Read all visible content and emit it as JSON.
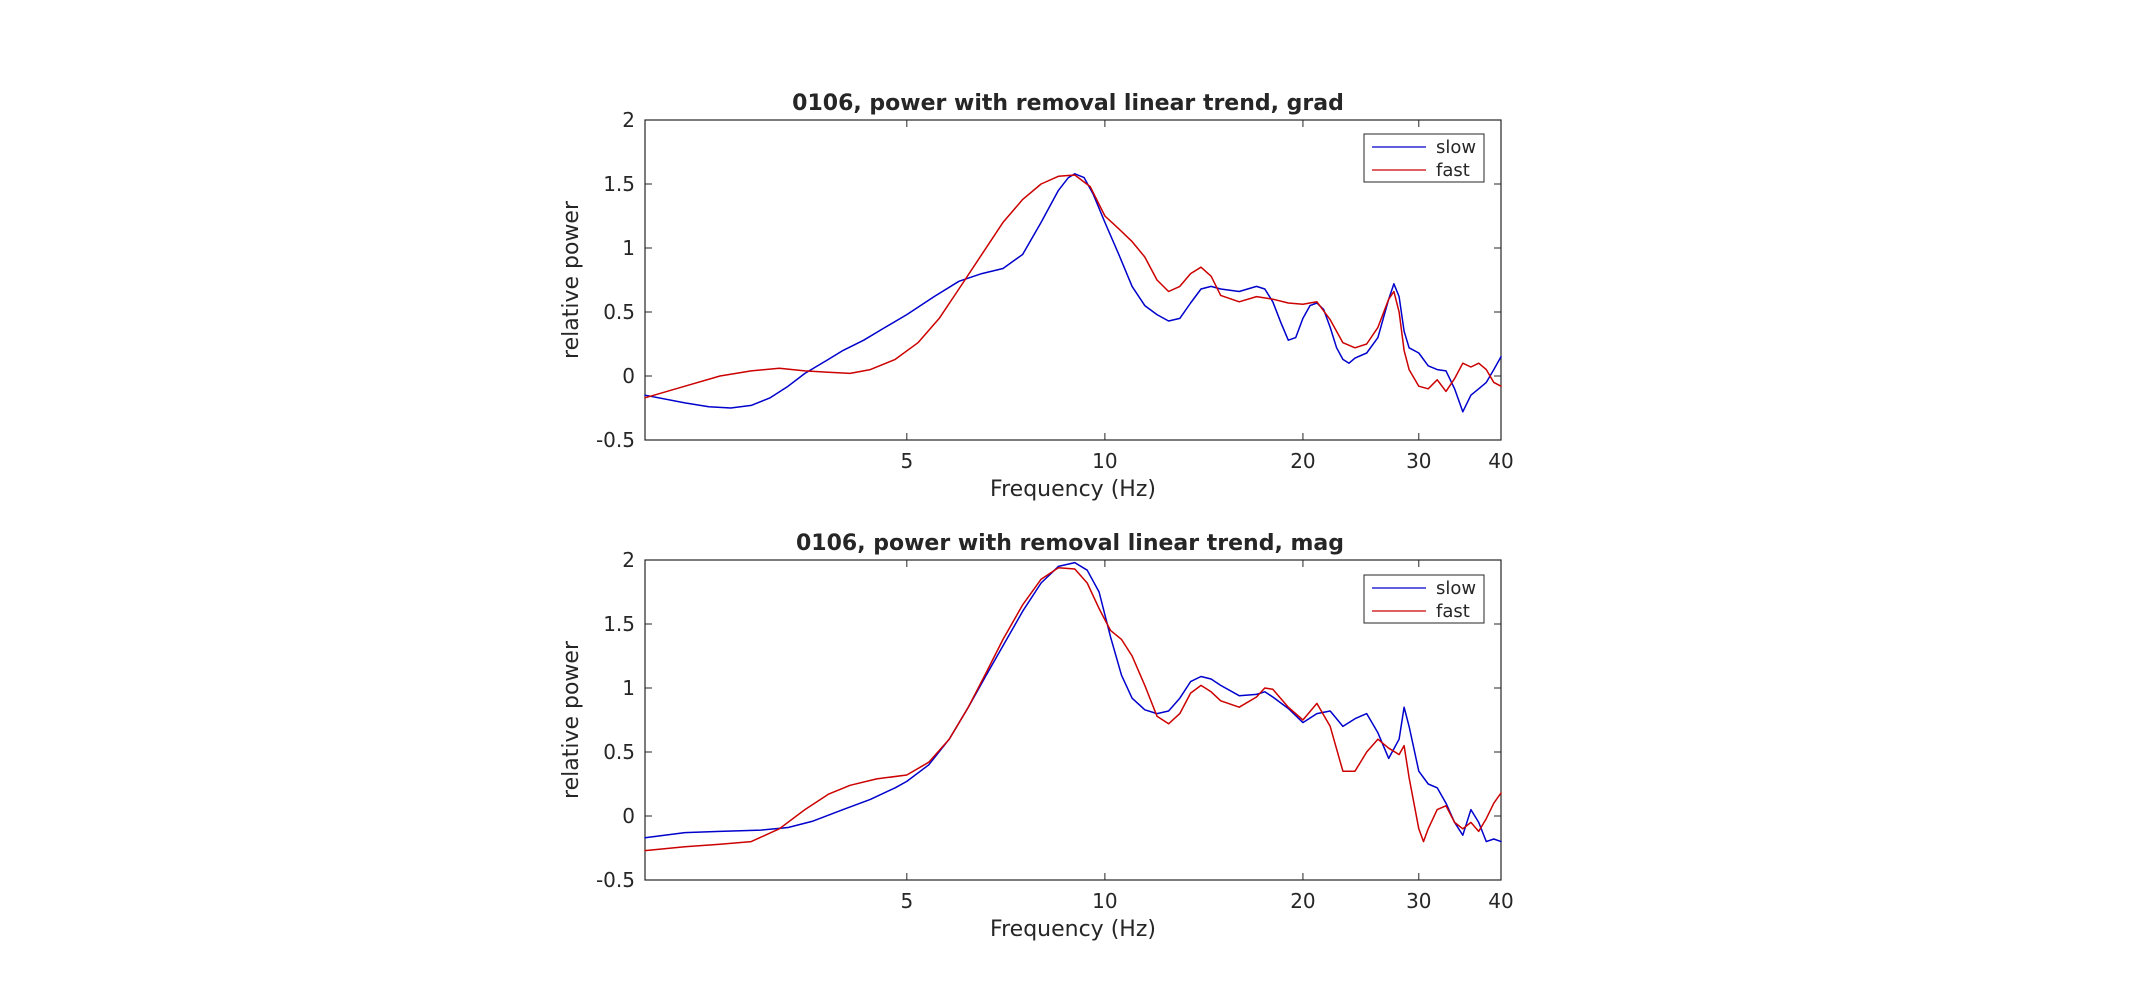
{
  "chart_data": [
    {
      "type": "line",
      "title": "0106, power with removal linear trend, grad",
      "xlabel": "Frequency (Hz)",
      "ylabel": "relative power",
      "x_scale": "log",
      "xlim": [
        2,
        40
      ],
      "ylim": [
        -0.5,
        2
      ],
      "x_ticks": [
        5,
        10,
        20,
        30,
        40
      ],
      "y_ticks": [
        -0.5,
        0,
        0.5,
        1,
        1.5,
        2
      ],
      "grid": false,
      "legend_position": "top-right",
      "series": [
        {
          "name": "slow",
          "color": "#0000cc",
          "points": [
            [
              2,
              -0.15
            ],
            [
              2.3,
              -0.21
            ],
            [
              2.5,
              -0.24
            ],
            [
              2.7,
              -0.25
            ],
            [
              2.9,
              -0.23
            ],
            [
              3.1,
              -0.17
            ],
            [
              3.3,
              -0.08
            ],
            [
              3.5,
              0.02
            ],
            [
              3.8,
              0.13
            ],
            [
              4.0,
              0.2
            ],
            [
              4.3,
              0.28
            ],
            [
              4.6,
              0.37
            ],
            [
              5.0,
              0.48
            ],
            [
              5.5,
              0.62
            ],
            [
              6.0,
              0.74
            ],
            [
              6.5,
              0.8
            ],
            [
              7.0,
              0.84
            ],
            [
              7.5,
              0.95
            ],
            [
              8.0,
              1.2
            ],
            [
              8.5,
              1.45
            ],
            [
              8.8,
              1.55
            ],
            [
              9.0,
              1.58
            ],
            [
              9.3,
              1.55
            ],
            [
              9.6,
              1.42
            ],
            [
              10.0,
              1.2
            ],
            [
              10.5,
              0.95
            ],
            [
              11.0,
              0.7
            ],
            [
              11.5,
              0.55
            ],
            [
              12.0,
              0.48
            ],
            [
              12.5,
              0.43
            ],
            [
              13.0,
              0.45
            ],
            [
              13.5,
              0.57
            ],
            [
              14.0,
              0.68
            ],
            [
              14.5,
              0.7
            ],
            [
              15.0,
              0.68
            ],
            [
              16.0,
              0.66
            ],
            [
              17.0,
              0.7
            ],
            [
              17.5,
              0.68
            ],
            [
              18.0,
              0.58
            ],
            [
              18.5,
              0.42
            ],
            [
              19.0,
              0.28
            ],
            [
              19.5,
              0.3
            ],
            [
              20.0,
              0.45
            ],
            [
              20.5,
              0.55
            ],
            [
              21.0,
              0.57
            ],
            [
              21.5,
              0.52
            ],
            [
              22.0,
              0.38
            ],
            [
              22.5,
              0.22
            ],
            [
              23.0,
              0.13
            ],
            [
              23.5,
              0.1
            ],
            [
              24.0,
              0.14
            ],
            [
              25.0,
              0.18
            ],
            [
              26.0,
              0.3
            ],
            [
              27.0,
              0.6
            ],
            [
              27.5,
              0.72
            ],
            [
              28.0,
              0.62
            ],
            [
              28.5,
              0.35
            ],
            [
              29.0,
              0.22
            ],
            [
              30.0,
              0.18
            ],
            [
              31.0,
              0.08
            ],
            [
              32.0,
              0.05
            ],
            [
              33.0,
              0.04
            ],
            [
              34.0,
              -0.1
            ],
            [
              35.0,
              -0.28
            ],
            [
              36.0,
              -0.15
            ],
            [
              37.0,
              -0.1
            ],
            [
              38.0,
              -0.05
            ],
            [
              39.0,
              0.05
            ],
            [
              40.0,
              0.15
            ]
          ]
        },
        {
          "name": "fast",
          "color": "#cc0000",
          "points": [
            [
              2,
              -0.17
            ],
            [
              2.3,
              -0.08
            ],
            [
              2.6,
              0.0
            ],
            [
              2.9,
              0.04
            ],
            [
              3.2,
              0.06
            ],
            [
              3.5,
              0.04
            ],
            [
              3.8,
              0.03
            ],
            [
              4.1,
              0.02
            ],
            [
              4.4,
              0.05
            ],
            [
              4.8,
              0.13
            ],
            [
              5.2,
              0.26
            ],
            [
              5.6,
              0.45
            ],
            [
              6.0,
              0.68
            ],
            [
              6.5,
              0.95
            ],
            [
              7.0,
              1.2
            ],
            [
              7.5,
              1.38
            ],
            [
              8.0,
              1.5
            ],
            [
              8.5,
              1.56
            ],
            [
              9.0,
              1.57
            ],
            [
              9.5,
              1.48
            ],
            [
              10.0,
              1.25
            ],
            [
              10.5,
              1.15
            ],
            [
              11.0,
              1.05
            ],
            [
              11.5,
              0.93
            ],
            [
              12.0,
              0.75
            ],
            [
              12.5,
              0.66
            ],
            [
              13.0,
              0.7
            ],
            [
              13.5,
              0.8
            ],
            [
              14.0,
              0.85
            ],
            [
              14.5,
              0.78
            ],
            [
              15.0,
              0.63
            ],
            [
              16.0,
              0.58
            ],
            [
              17.0,
              0.62
            ],
            [
              18.0,
              0.6
            ],
            [
              19.0,
              0.57
            ],
            [
              20.0,
              0.56
            ],
            [
              21.0,
              0.58
            ],
            [
              22.0,
              0.44
            ],
            [
              23.0,
              0.26
            ],
            [
              24.0,
              0.22
            ],
            [
              25.0,
              0.25
            ],
            [
              26.0,
              0.38
            ],
            [
              27.0,
              0.6
            ],
            [
              27.5,
              0.66
            ],
            [
              28.0,
              0.5
            ],
            [
              28.5,
              0.2
            ],
            [
              29.0,
              0.05
            ],
            [
              30.0,
              -0.08
            ],
            [
              31.0,
              -0.1
            ],
            [
              32.0,
              -0.03
            ],
            [
              33.0,
              -0.12
            ],
            [
              34.0,
              -0.02
            ],
            [
              35.0,
              0.1
            ],
            [
              36.0,
              0.07
            ],
            [
              37.0,
              0.1
            ],
            [
              38.0,
              0.05
            ],
            [
              39.0,
              -0.05
            ],
            [
              40.0,
              -0.08
            ]
          ]
        }
      ]
    },
    {
      "type": "line",
      "title": "0106, power with removal linear trend, mag",
      "xlabel": "Frequency (Hz)",
      "ylabel": "relative power",
      "x_scale": "log",
      "xlim": [
        2,
        40
      ],
      "ylim": [
        -0.5,
        2
      ],
      "x_ticks": [
        5,
        10,
        20,
        30,
        40
      ],
      "y_ticks": [
        -0.5,
        0,
        0.5,
        1,
        1.5,
        2
      ],
      "grid": false,
      "legend_position": "top-right",
      "series": [
        {
          "name": "slow",
          "color": "#0000cc",
          "points": [
            [
              2,
              -0.17
            ],
            [
              2.3,
              -0.13
            ],
            [
              2.6,
              -0.12
            ],
            [
              3.0,
              -0.11
            ],
            [
              3.3,
              -0.09
            ],
            [
              3.6,
              -0.04
            ],
            [
              4.0,
              0.05
            ],
            [
              4.4,
              0.13
            ],
            [
              4.8,
              0.22
            ],
            [
              5.0,
              0.27
            ],
            [
              5.4,
              0.4
            ],
            [
              5.8,
              0.6
            ],
            [
              6.2,
              0.85
            ],
            [
              6.6,
              1.1
            ],
            [
              7.0,
              1.33
            ],
            [
              7.5,
              1.6
            ],
            [
              8.0,
              1.82
            ],
            [
              8.5,
              1.95
            ],
            [
              9.0,
              1.98
            ],
            [
              9.4,
              1.92
            ],
            [
              9.8,
              1.75
            ],
            [
              10.2,
              1.4
            ],
            [
              10.6,
              1.1
            ],
            [
              11.0,
              0.92
            ],
            [
              11.5,
              0.83
            ],
            [
              12.0,
              0.8
            ],
            [
              12.5,
              0.82
            ],
            [
              13.0,
              0.92
            ],
            [
              13.5,
              1.05
            ],
            [
              14.0,
              1.09
            ],
            [
              14.5,
              1.07
            ],
            [
              15.0,
              1.02
            ],
            [
              16.0,
              0.94
            ],
            [
              17.0,
              0.95
            ],
            [
              17.5,
              0.97
            ],
            [
              18.0,
              0.93
            ],
            [
              19.0,
              0.84
            ],
            [
              20.0,
              0.73
            ],
            [
              21.0,
              0.8
            ],
            [
              22.0,
              0.82
            ],
            [
              23.0,
              0.7
            ],
            [
              24.0,
              0.76
            ],
            [
              25.0,
              0.8
            ],
            [
              26.0,
              0.65
            ],
            [
              27.0,
              0.45
            ],
            [
              28.0,
              0.6
            ],
            [
              28.5,
              0.85
            ],
            [
              29.0,
              0.7
            ],
            [
              30.0,
              0.35
            ],
            [
              31.0,
              0.25
            ],
            [
              32.0,
              0.22
            ],
            [
              33.0,
              0.1
            ],
            [
              34.0,
              -0.05
            ],
            [
              35.0,
              -0.15
            ],
            [
              36.0,
              0.05
            ],
            [
              37.0,
              -0.05
            ],
            [
              38.0,
              -0.2
            ],
            [
              39.0,
              -0.18
            ],
            [
              40.0,
              -0.2
            ]
          ]
        },
        {
          "name": "fast",
          "color": "#cc0000",
          "points": [
            [
              2,
              -0.27
            ],
            [
              2.3,
              -0.24
            ],
            [
              2.6,
              -0.22
            ],
            [
              2.9,
              -0.2
            ],
            [
              3.2,
              -0.1
            ],
            [
              3.5,
              0.05
            ],
            [
              3.8,
              0.17
            ],
            [
              4.1,
              0.24
            ],
            [
              4.5,
              0.29
            ],
            [
              5.0,
              0.32
            ],
            [
              5.4,
              0.42
            ],
            [
              5.8,
              0.6
            ],
            [
              6.2,
              0.85
            ],
            [
              6.6,
              1.12
            ],
            [
              7.0,
              1.38
            ],
            [
              7.5,
              1.65
            ],
            [
              8.0,
              1.85
            ],
            [
              8.5,
              1.94
            ],
            [
              9.0,
              1.93
            ],
            [
              9.4,
              1.82
            ],
            [
              9.8,
              1.62
            ],
            [
              10.2,
              1.45
            ],
            [
              10.6,
              1.38
            ],
            [
              11.0,
              1.25
            ],
            [
              11.5,
              1.02
            ],
            [
              12.0,
              0.78
            ],
            [
              12.5,
              0.72
            ],
            [
              13.0,
              0.8
            ],
            [
              13.5,
              0.96
            ],
            [
              14.0,
              1.02
            ],
            [
              14.5,
              0.97
            ],
            [
              15.0,
              0.9
            ],
            [
              16.0,
              0.85
            ],
            [
              17.0,
              0.93
            ],
            [
              17.5,
              1.0
            ],
            [
              18.0,
              0.99
            ],
            [
              19.0,
              0.85
            ],
            [
              20.0,
              0.75
            ],
            [
              21.0,
              0.88
            ],
            [
              22.0,
              0.7
            ],
            [
              23.0,
              0.35
            ],
            [
              24.0,
              0.35
            ],
            [
              25.0,
              0.5
            ],
            [
              26.0,
              0.6
            ],
            [
              27.0,
              0.53
            ],
            [
              28.0,
              0.48
            ],
            [
              28.5,
              0.55
            ],
            [
              29.0,
              0.3
            ],
            [
              30.0,
              -0.1
            ],
            [
              30.5,
              -0.2
            ],
            [
              31.0,
              -0.1
            ],
            [
              32.0,
              0.05
            ],
            [
              33.0,
              0.08
            ],
            [
              34.0,
              -0.05
            ],
            [
              35.0,
              -0.1
            ],
            [
              36.0,
              -0.05
            ],
            [
              37.0,
              -0.12
            ],
            [
              38.0,
              -0.02
            ],
            [
              39.0,
              0.1
            ],
            [
              40.0,
              0.18
            ]
          ]
        }
      ]
    }
  ]
}
